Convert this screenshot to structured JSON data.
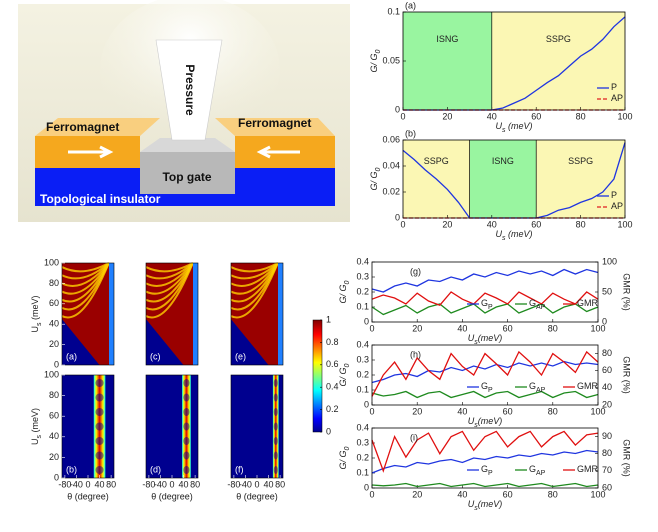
{
  "diagram": {
    "pressure": "Pressure",
    "ferromagnet_left": "Ferromagnet",
    "ferromagnet_right": "Ferromagnet",
    "top_gate": "Top gate",
    "substrate": "Topological insulator"
  },
  "chart_data": [
    {
      "type": "line",
      "panel": "(a)",
      "ylabel": {
        "main": "G/ G",
        "sub": "0"
      },
      "xlabel": {
        "main": "U",
        "sub": "s",
        "rest": " (meV)"
      },
      "xlim": [
        0,
        100
      ],
      "xticks": [
        0,
        20,
        40,
        60,
        80,
        100
      ],
      "ylim": [
        0,
        0.1
      ],
      "yticks": [
        0,
        0.05,
        0.1
      ],
      "regions": [
        {
          "label": "ISNG",
          "start": 0,
          "end": 40,
          "color": "#99f5a0"
        },
        {
          "label": "SSPG",
          "start": 40,
          "end": 100,
          "color": "#fbf7b4"
        }
      ],
      "x": [
        0,
        5,
        10,
        15,
        20,
        25,
        30,
        35,
        40,
        45,
        50,
        55,
        60,
        65,
        70,
        75,
        80,
        85,
        90,
        95,
        100
      ],
      "series": [
        {
          "name": "P",
          "color": "#1f35e0",
          "values": [
            0,
            0,
            0,
            0,
            0,
            0,
            0,
            0,
            0,
            0.002,
            0.007,
            0.012,
            0.02,
            0.028,
            0.035,
            0.045,
            0.055,
            0.062,
            0.072,
            0.085,
            0.095
          ]
        },
        {
          "name": "AP",
          "color": "#e02020",
          "dash": true,
          "values": [
            0,
            0,
            0,
            0,
            0,
            0,
            0,
            0,
            0,
            0,
            0,
            0,
            0,
            0,
            0,
            0,
            0,
            0,
            0,
            0,
            0
          ]
        }
      ]
    },
    {
      "type": "line",
      "panel": "(b)",
      "ylabel": {
        "main": "G/ G",
        "sub": "0"
      },
      "xlabel": {
        "main": "U",
        "sub": "s",
        "rest": " (meV)"
      },
      "xlim": [
        0,
        100
      ],
      "xticks": [
        0,
        20,
        40,
        60,
        80,
        100
      ],
      "ylim": [
        0,
        0.06
      ],
      "yticks": [
        0,
        0.02,
        0.04,
        0.06
      ],
      "regions": [
        {
          "label": "SSPG",
          "start": 0,
          "end": 30,
          "color": "#fbf7b4"
        },
        {
          "label": "ISNG",
          "start": 30,
          "end": 60,
          "color": "#99f5a0"
        },
        {
          "label": "SSPG",
          "start": 60,
          "end": 100,
          "color": "#fbf7b4"
        }
      ],
      "x": [
        0,
        5,
        10,
        15,
        20,
        25,
        30,
        35,
        40,
        45,
        50,
        55,
        60,
        65,
        70,
        75,
        80,
        85,
        90,
        95,
        100
      ],
      "series": [
        {
          "name": "P",
          "color": "#1f35e0",
          "values": [
            0.052,
            0.045,
            0.037,
            0.03,
            0.022,
            0.012,
            0,
            0,
            0,
            0,
            0,
            0,
            0,
            0.002,
            0.006,
            0.008,
            0.012,
            0.015,
            0.02,
            0.03,
            0.058
          ]
        },
        {
          "name": "AP",
          "color": "#e02020",
          "dash": true,
          "values": [
            0,
            0,
            0,
            0,
            0,
            0,
            0,
            0,
            0,
            0,
            0,
            0,
            0,
            0,
            0,
            0,
            0,
            0,
            0,
            0,
            0
          ]
        }
      ]
    },
    {
      "type": "line",
      "panel": "(g)",
      "ylabel": {
        "main": "G/ G",
        "sub": "0"
      },
      "y2label": "GMR (%)",
      "xlabel": {
        "main": "U",
        "sub": "s",
        "rest": "(meV)"
      },
      "xlim": [
        0,
        100
      ],
      "xticks": [
        0,
        20,
        40,
        60,
        80,
        100
      ],
      "ylim": [
        0,
        0.4
      ],
      "yticks": [
        0,
        0.1,
        0.2,
        0.3,
        0.4
      ],
      "y2lim": [
        0,
        100
      ],
      "y2ticks": [
        0,
        50,
        100
      ],
      "x": [
        0,
        5,
        10,
        15,
        20,
        25,
        30,
        35,
        40,
        45,
        50,
        55,
        60,
        65,
        70,
        75,
        80,
        85,
        90,
        95,
        100
      ],
      "series": [
        {
          "name": "G",
          "sub": "P",
          "color": "#1f35e0",
          "values": [
            0.22,
            0.2,
            0.24,
            0.26,
            0.24,
            0.28,
            0.27,
            0.3,
            0.28,
            0.32,
            0.3,
            0.33,
            0.31,
            0.34,
            0.32,
            0.34,
            0.31,
            0.35,
            0.32,
            0.35,
            0.33
          ]
        },
        {
          "name": "G",
          "sub": "AP",
          "color": "#1e8a1e",
          "values": [
            0.1,
            0.05,
            0.08,
            0.11,
            0.06,
            0.1,
            0.12,
            0.06,
            0.09,
            0.12,
            0.06,
            0.1,
            0.12,
            0.06,
            0.09,
            0.12,
            0.06,
            0.1,
            0.12,
            0.07,
            0.1
          ]
        },
        {
          "name": "GMR",
          "color": "#e01010",
          "axis": "y2",
          "values": [
            38,
            45,
            40,
            30,
            48,
            35,
            28,
            50,
            38,
            30,
            48,
            40,
            30,
            50,
            40,
            30,
            48,
            38,
            30,
            50,
            38
          ]
        }
      ]
    },
    {
      "type": "line",
      "panel": "(h)",
      "ylabel": {
        "main": "G/ G",
        "sub": "0"
      },
      "y2label": "GMR (%)",
      "xlabel": {
        "main": "U",
        "sub": "s",
        "rest": "(meV)"
      },
      "xlim": [
        0,
        100
      ],
      "xticks": [
        0,
        20,
        40,
        60,
        80,
        100
      ],
      "ylim": [
        0,
        0.4
      ],
      "yticks": [
        0,
        0.1,
        0.2,
        0.3,
        0.4
      ],
      "y2lim": [
        20,
        90
      ],
      "y2ticks": [
        20,
        40,
        60,
        80
      ],
      "x": [
        0,
        5,
        10,
        15,
        20,
        25,
        30,
        35,
        40,
        45,
        50,
        55,
        60,
        65,
        70,
        75,
        80,
        85,
        90,
        95,
        100
      ],
      "series": [
        {
          "name": "G",
          "sub": "P",
          "color": "#1f35e0",
          "values": [
            0.15,
            0.17,
            0.2,
            0.21,
            0.19,
            0.23,
            0.22,
            0.25,
            0.23,
            0.26,
            0.24,
            0.27,
            0.25,
            0.28,
            0.26,
            0.28,
            0.26,
            0.29,
            0.27,
            0.28,
            0.27
          ]
        },
        {
          "name": "G",
          "sub": "AP",
          "color": "#1e8a1e",
          "values": [
            0.08,
            0.06,
            0.07,
            0.09,
            0.05,
            0.08,
            0.09,
            0.05,
            0.07,
            0.09,
            0.05,
            0.08,
            0.09,
            0.05,
            0.07,
            0.09,
            0.05,
            0.08,
            0.09,
            0.05,
            0.07
          ]
        },
        {
          "name": "GMR",
          "color": "#e01010",
          "axis": "y2",
          "values": [
            30,
            55,
            70,
            50,
            75,
            60,
            50,
            80,
            65,
            55,
            80,
            68,
            55,
            82,
            70,
            55,
            80,
            70,
            58,
            82,
            70
          ]
        }
      ]
    },
    {
      "type": "line",
      "panel": "(i)",
      "ylabel": {
        "main": "G/ G",
        "sub": "0"
      },
      "y2label": "GMR (%)",
      "xlabel": {
        "main": "U",
        "sub": "s",
        "rest": "(meV)"
      },
      "xlim": [
        0,
        100
      ],
      "xticks": [
        0,
        20,
        40,
        60,
        80,
        100
      ],
      "ylim": [
        0,
        0.4
      ],
      "yticks": [
        0,
        0.1,
        0.2,
        0.3,
        0.4
      ],
      "y2lim": [
        60,
        95
      ],
      "y2ticks": [
        60,
        70,
        80,
        90
      ],
      "x": [
        0,
        5,
        10,
        15,
        20,
        25,
        30,
        35,
        40,
        45,
        50,
        55,
        60,
        65,
        70,
        75,
        80,
        85,
        90,
        95,
        100
      ],
      "series": [
        {
          "name": "G",
          "sub": "P",
          "color": "#1f35e0",
          "values": [
            0.1,
            0.13,
            0.15,
            0.14,
            0.17,
            0.16,
            0.18,
            0.19,
            0.17,
            0.2,
            0.19,
            0.21,
            0.2,
            0.22,
            0.21,
            0.23,
            0.22,
            0.24,
            0.23,
            0.25,
            0.24
          ]
        },
        {
          "name": "G",
          "sub": "AP",
          "color": "#1e8a1e",
          "values": [
            0.02,
            0.015,
            0.02,
            0.03,
            0.01,
            0.02,
            0.03,
            0.01,
            0.02,
            0.03,
            0.01,
            0.02,
            0.03,
            0.01,
            0.02,
            0.03,
            0.01,
            0.02,
            0.03,
            0.01,
            0.02
          ]
        },
        {
          "name": "GMR",
          "color": "#e01010",
          "axis": "y2",
          "values": [
            88,
            70,
            90,
            78,
            88,
            92,
            80,
            90,
            93,
            82,
            90,
            93,
            84,
            90,
            93,
            84,
            90,
            93,
            85,
            91,
            92
          ]
        }
      ]
    },
    {
      "type": "heatmap",
      "panels": [
        "(a)",
        "(c)",
        "(e)",
        "(b)",
        "(d)",
        "(f)"
      ],
      "xlabel": "θ (degree)",
      "ylabel": {
        "main": "U",
        "sub": "s",
        "rest": " (meV)"
      },
      "xlim": [
        -90,
        90
      ],
      "xticks": [
        -80,
        -40,
        0,
        40,
        80
      ],
      "ylim": [
        0,
        100
      ],
      "yticks": [
        0,
        20,
        40,
        60,
        80,
        100
      ],
      "colorbar_lim": [
        0,
        1
      ],
      "colorbar_ticks": [
        0,
        0.2,
        0.4,
        0.6,
        0.8,
        1
      ]
    }
  ]
}
